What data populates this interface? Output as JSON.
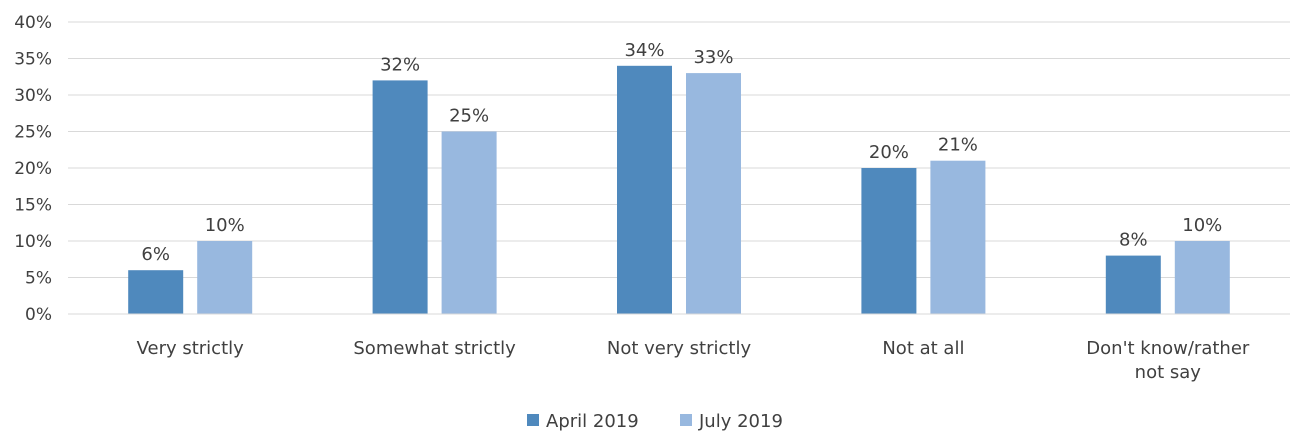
{
  "chart_data": {
    "type": "bar",
    "categories": [
      [
        "Very strictly"
      ],
      [
        "Somewhat strictly"
      ],
      [
        "Not very strictly"
      ],
      [
        "Not at all"
      ],
      [
        "Don't know/rather",
        "not say"
      ]
    ],
    "series": [
      {
        "name": "April 2019",
        "color": "#4F89BD",
        "values": [
          6,
          32,
          34,
          20,
          8
        ],
        "labels": [
          "6%",
          "32%",
          "34%",
          "20%",
          "8%"
        ]
      },
      {
        "name": "July 2019",
        "color": "#98B8DF",
        "values": [
          10,
          25,
          33,
          21,
          10
        ],
        "labels": [
          "10%",
          "25%",
          "33%",
          "21%",
          "10%"
        ]
      }
    ],
    "y_ticks": [
      "0%",
      "5%",
      "10%",
      "15%",
      "20%",
      "25%",
      "30%",
      "35%",
      "40%"
    ],
    "ylim": [
      0,
      40
    ],
    "title": "",
    "xlabel": "",
    "ylabel": "",
    "grid": true,
    "gridline_color": "#D9D9D9",
    "legend_position": "bottom"
  }
}
